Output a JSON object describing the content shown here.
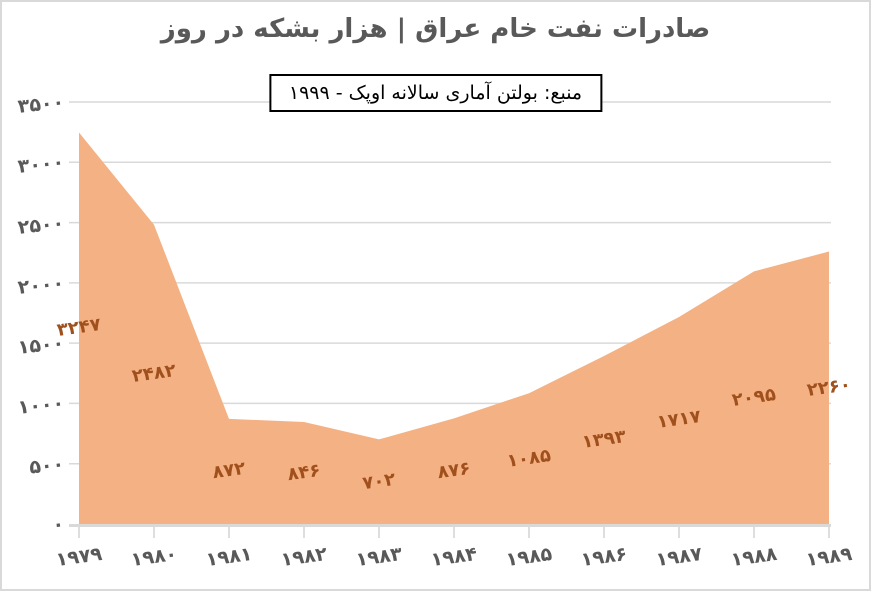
{
  "chart_data": {
    "type": "area",
    "title": "صادرات نفت خام عراق | هزار بشکه در روز",
    "source_note": "منبع: بولتن آماری سالانه اوپک - ۱۹۹۹",
    "direction": "rtl",
    "categories": [
      1979,
      1980,
      1981,
      1982,
      1983,
      1984,
      1985,
      1986,
      1987,
      1988,
      1989
    ],
    "categories_display": [
      "۱۹۷۹",
      "۱۹۸۰",
      "۱۹۸۱",
      "۱۹۸۲",
      "۱۹۸۳",
      "۱۹۸۴",
      "۱۹۸۵",
      "۱۹۸۶",
      "۱۹۸۷",
      "۱۹۸۸",
      "۱۹۸۹"
    ],
    "values": [
      3247,
      2482,
      872,
      846,
      702,
      876,
      1085,
      1393,
      1717,
      2095,
      2260
    ],
    "value_labels_display": [
      "۳۲۴۷",
      "۲۴۸۲",
      "۸۷۲",
      "۸۴۶",
      "۷۰۲",
      "۸۷۶",
      "۱۰۸۵",
      "۱۳۹۳",
      "۱۷۱۷",
      "۲۰۹۵",
      "۲۲۶۰"
    ],
    "xlabel": "",
    "ylabel": "",
    "ylim": [
      0,
      3500
    ],
    "y_ticks": [
      3500,
      3000,
      2500,
      2000,
      1500,
      1000,
      500,
      0
    ],
    "y_tick_labels_display": [
      "۳۵۰۰",
      "۳۰۰۰",
      "۲۵۰۰",
      "۲۰۰۰",
      "۱۵۰۰",
      "۱۰۰۰",
      "۵۰۰",
      "۰"
    ],
    "grid": true,
    "legend": false,
    "data_label_position": "center-of-area",
    "colors": {
      "area_fill": "#F4B183",
      "data_label": "#A0501D",
      "axis_label": "#595959",
      "title": "#595959",
      "gridline": "#D9D9D9",
      "axis_line": "#D9D9D9",
      "tick_mark": "#D3D3D3",
      "source_border": "#000000",
      "frame_border": "#D9D9D9"
    }
  }
}
